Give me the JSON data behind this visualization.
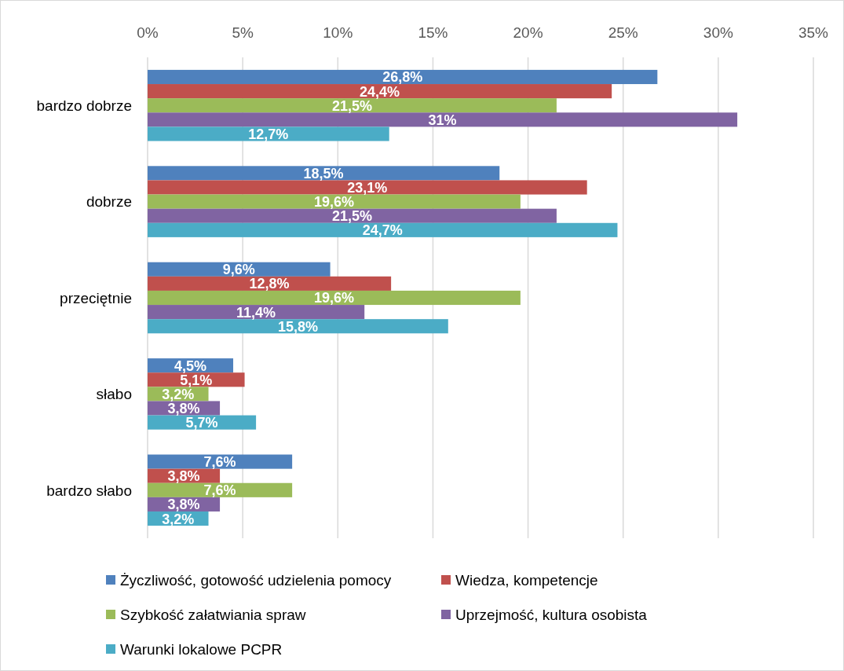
{
  "chart_data": {
    "type": "bar",
    "orientation": "horizontal",
    "categories": [
      "bardzo dobrze",
      "dobrze",
      "przeciętnie",
      "słabo",
      "bardzo słabo"
    ],
    "series": [
      {
        "name": "Życzliwość, gotowość udzielenia pomocy",
        "color": "#4f81bd",
        "values": [
          26.8,
          18.5,
          9.6,
          4.5,
          7.6
        ],
        "value_labels": [
          "26,8%",
          "18,5%",
          "9,6%",
          "4,5%",
          "7,6%"
        ]
      },
      {
        "name": "Wiedza, kompetencje",
        "color": "#c0504d",
        "values": [
          24.4,
          23.1,
          12.8,
          5.1,
          3.8
        ],
        "value_labels": [
          "24,4%",
          "23,1%",
          "12,8%",
          "5,1%",
          "3,8%"
        ]
      },
      {
        "name": "Szybkość załatwiania spraw",
        "color": "#9bbb59",
        "values": [
          21.5,
          19.6,
          19.6,
          3.2,
          7.6
        ],
        "value_labels": [
          "21,5%",
          "19,6%",
          "19,6%",
          "3,2%",
          "7,6%"
        ]
      },
      {
        "name": "Uprzejmość, kultura osobista",
        "color": "#8064a2",
        "values": [
          31,
          21.5,
          11.4,
          3.8,
          3.8
        ],
        "value_labels": [
          "31%",
          "21,5%",
          "11,4%",
          "3,8%",
          "3,8%"
        ]
      },
      {
        "name": "Warunki lokalowe PCPR",
        "color": "#4bacc6",
        "values": [
          12.7,
          24.7,
          15.8,
          5.7,
          3.2
        ],
        "value_labels": [
          "12,7%",
          "24,7%",
          "15,8%",
          "5,7%",
          "3,2%"
        ]
      }
    ],
    "xlim": [
      0,
      35
    ],
    "xticks": [
      {
        "value": 0,
        "label": "0%"
      },
      {
        "value": 5,
        "label": "5%"
      },
      {
        "value": 10,
        "label": "10%"
      },
      {
        "value": 15,
        "label": "15%"
      },
      {
        "value": 20,
        "label": "20%"
      },
      {
        "value": 25,
        "label": "25%"
      },
      {
        "value": 30,
        "label": "30%"
      },
      {
        "value": 35,
        "label": "35%"
      }
    ],
    "grid": "x",
    "legend": "bottom"
  }
}
